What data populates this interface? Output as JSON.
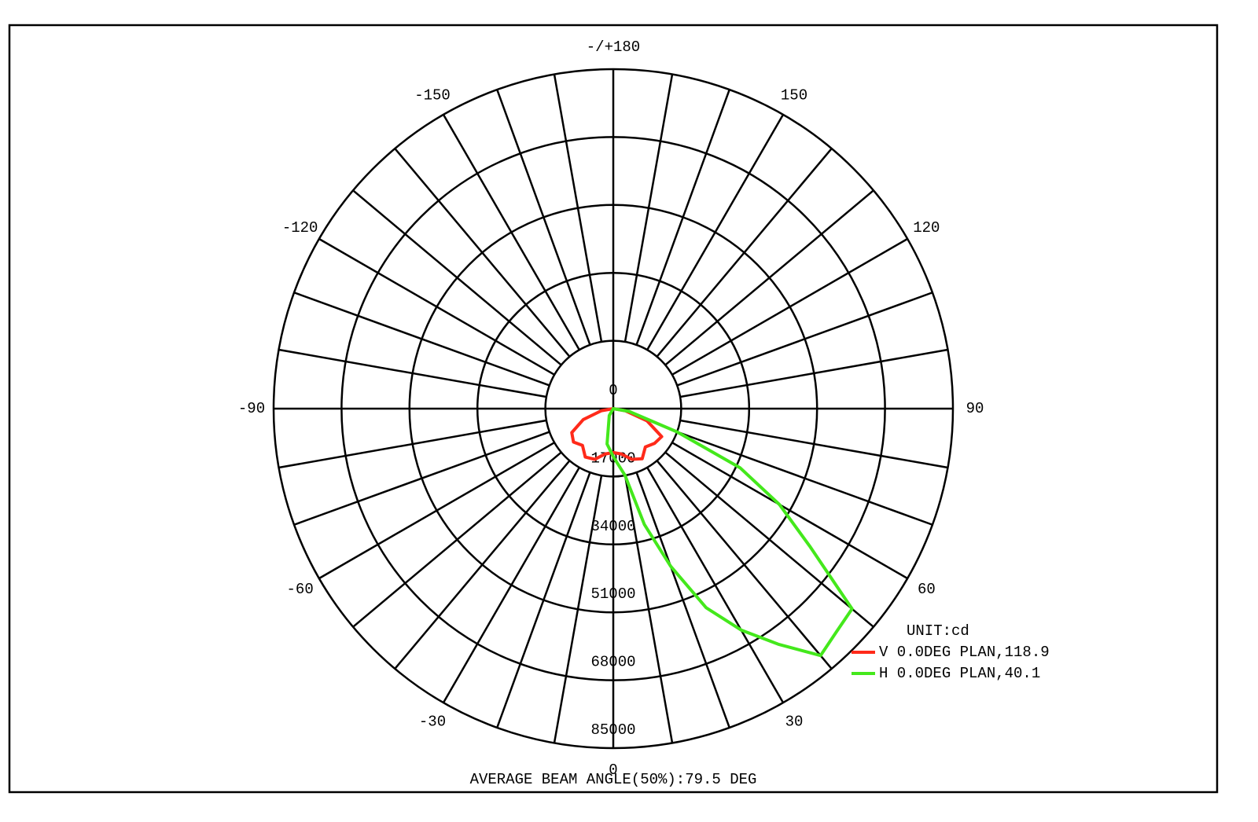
{
  "chart_data": {
    "type": "polar",
    "unit": "UNIT:cd",
    "footer": "AVERAGE BEAM ANGLE(50%):79.5 DEG",
    "rlim": [
      0,
      85000
    ],
    "rticks": [
      0,
      17000,
      34000,
      51000,
      68000,
      85000
    ],
    "thetaticks": [
      0,
      30,
      60,
      90,
      120,
      150,
      {
        "value": 180,
        "label": "-/+180"
      },
      -150,
      -120,
      -90,
      -60,
      -30
    ],
    "grid": true,
    "series": [
      {
        "name": "V 0.0DEG PLAN,118.9",
        "color": "#ff2a1a",
        "theta": [
          -90,
          -80,
          -70,
          -60,
          -50,
          -40,
          -30,
          -20,
          -10,
          0,
          10,
          20,
          30,
          40,
          50,
          60,
          70,
          80,
          90
        ],
        "values": [
          0,
          3000,
          8000,
          12000,
          13000,
          12000,
          14000,
          13500,
          11500,
          11000,
          11500,
          13500,
          14500,
          12500,
          13500,
          14000,
          9000,
          3000,
          0
        ]
      },
      {
        "name": "H 0.0DEG PLAN,40.1",
        "color": "#44e81c",
        "theta": [
          -30,
          -10,
          0,
          10,
          15,
          20,
          25,
          30,
          35,
          40,
          45,
          50,
          55,
          60,
          65,
          70,
          80,
          90
        ],
        "values": [
          2000,
          9000,
          12000,
          17000,
          30000,
          42000,
          55000,
          64000,
          72000,
          80700,
          79000,
          78000,
          60000,
          48000,
          35000,
          17000,
          4000,
          0
        ]
      }
    ]
  }
}
